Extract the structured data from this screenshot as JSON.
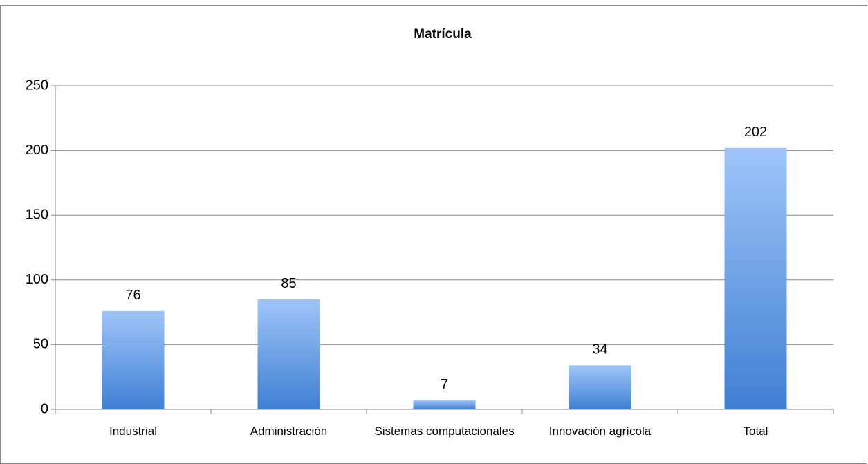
{
  "chart_data": {
    "type": "bar",
    "title": "Matrícula",
    "categories": [
      "Industrial",
      "Administración",
      "Sistemas computacionales",
      "Innovación agrícola",
      "Total"
    ],
    "values": [
      76,
      85,
      7,
      34,
      202
    ],
    "color": "#3f80d2",
    "ylim": [
      0,
      250
    ],
    "yticks": [
      0,
      50,
      100,
      150,
      200,
      250
    ],
    "grid": true
  }
}
